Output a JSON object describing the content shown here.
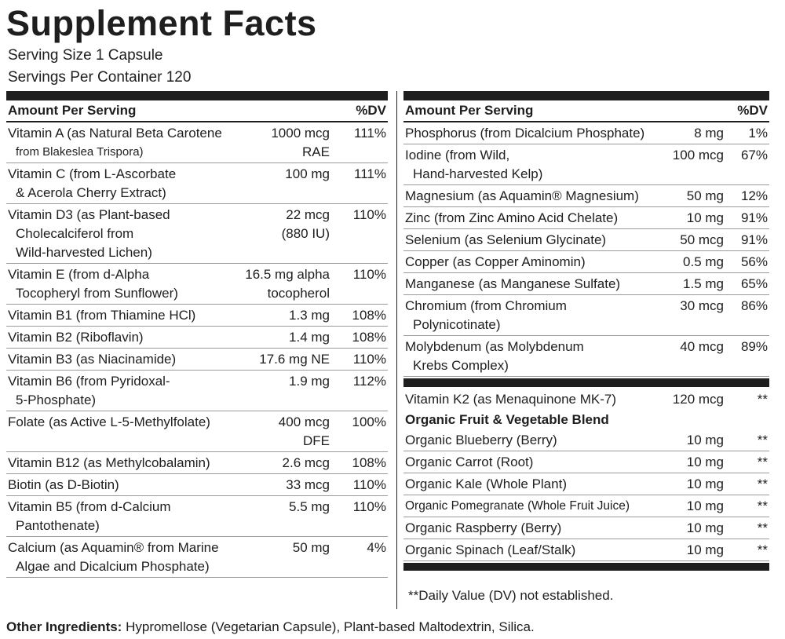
{
  "title": "Supplement Facts",
  "serving_size": "Serving Size 1 Capsule",
  "servings_per_container": "Servings Per Container 120",
  "header": {
    "amount_label": "Amount Per Serving",
    "dv_label": "%DV"
  },
  "left_rows": [
    {
      "name1": "Vitamin A (as Natural Beta Carotene",
      "name2": "from Blakeslea Trispora)",
      "amt1": "1000 mcg",
      "amt2": "RAE",
      "dv": "111%"
    },
    {
      "name1": "Vitamin C (from L-Ascorbate",
      "name2": "& Acerola Cherry Extract)",
      "amt1": "100 mg",
      "amt2": "",
      "dv": "111%"
    },
    {
      "name1": "Vitamin D3 (as Plant-based",
      "name2": "Cholecalciferol from",
      "name3": "Wild-harvested Lichen)",
      "amt1": "22 mcg",
      "amt2": "(880 IU)",
      "dv": "110%"
    },
    {
      "name1": "Vitamin E (from d-Alpha",
      "name2": "Tocopheryl from Sunflower)",
      "amt1": "16.5 mg alpha",
      "amt2": "tocopherol",
      "dv": "110%"
    },
    {
      "name1": "Vitamin B1 (from Thiamine HCl)",
      "amt1": "1.3 mg",
      "dv": "108%"
    },
    {
      "name1": "Vitamin B2 (Riboflavin)",
      "amt1": "1.4 mg",
      "dv": "108%"
    },
    {
      "name1": "Vitamin B3 (as Niacinamide)",
      "amt1": "17.6 mg NE",
      "dv": "110%"
    },
    {
      "name1": "Vitamin B6 (from Pyridoxal-",
      "name2": "5-Phosphate)",
      "amt1": "1.9 mg",
      "dv": "112%"
    },
    {
      "name1": "Folate (as Active L-5-Methylfolate)",
      "amt1": "400 mcg",
      "amt2": "DFE",
      "dv": "100%"
    },
    {
      "name1": "Vitamin B12 (as Methylcobalamin)",
      "amt1": "2.6 mcg",
      "dv": "108%"
    },
    {
      "name1": "Biotin (as D-Biotin)",
      "amt1": "33 mcg",
      "dv": "110%"
    },
    {
      "name1": "Vitamin B5 (from d-Calcium",
      "name2": "Pantothenate)",
      "amt1": "5.5 mg",
      "dv": "110%"
    },
    {
      "name1": "Calcium (as Aquamin® from Marine",
      "name2": "Algae and Dicalcium Phosphate)",
      "amt1": "50 mg",
      "dv": "4%"
    }
  ],
  "right_rows": [
    {
      "name1": "Phosphorus (from Dicalcium Phosphate)",
      "amt1": "8 mg",
      "dv": "1%"
    },
    {
      "name1": "Iodine (from Wild,",
      "name2": "Hand-harvested Kelp)",
      "amt1": "100 mcg",
      "dv": "67%"
    },
    {
      "name1": "Magnesium (as Aquamin® Magnesium)",
      "amt1": "50 mg",
      "dv": "12%"
    },
    {
      "name1": "Zinc (from Zinc Amino Acid Chelate)",
      "amt1": "10 mg",
      "dv": "91%"
    },
    {
      "name1": "Selenium (as Selenium Glycinate)",
      "amt1": "50 mcg",
      "dv": "91%"
    },
    {
      "name1": "Copper (as Copper Aminomin)",
      "amt1": "0.5 mg",
      "dv": "56%"
    },
    {
      "name1": "Manganese (as Manganese Sulfate)",
      "amt1": "1.5 mg",
      "dv": "65%"
    },
    {
      "name1": "Chromium (from Chromium",
      "name2": "Polynicotinate)",
      "amt1": "30 mcg",
      "dv": "86%"
    },
    {
      "name1": "Molybdenum (as Molybdenum",
      "name2": "Krebs Complex)",
      "amt1": "40 mcg",
      "dv": "89%"
    }
  ],
  "k2_row": {
    "name1": "Vitamin K2 (as Menaquinone MK-7)",
    "amt1": "120 mcg",
    "dv": "**"
  },
  "blend_title": "Organic Fruit & Vegetable Blend",
  "blend_rows": [
    {
      "name1": "Organic Blueberry (Berry)",
      "amt1": "10 mg",
      "dv": "**"
    },
    {
      "name1": "Organic Carrot (Root)",
      "amt1": "10 mg",
      "dv": "**"
    },
    {
      "name1": "Organic Kale (Whole Plant)",
      "amt1": "10 mg",
      "dv": "**"
    },
    {
      "name1": "Organic Pomegranate (Whole Fruit Juice)",
      "amt1": "10 mg",
      "dv": "**"
    },
    {
      "name1": "Organic Raspberry (Berry)",
      "amt1": "10 mg",
      "dv": "**"
    },
    {
      "name1": "Organic  Spinach (Leaf/Stalk)",
      "amt1": "10 mg",
      "dv": "**"
    }
  ],
  "footnote": "**Daily Value (DV) not established.",
  "other_ingredients_label": "Other Ingredients:",
  "other_ingredients_text": " Hypromellose (Vegetarian Capsule), Plant-based Maltodextrin, Silica."
}
